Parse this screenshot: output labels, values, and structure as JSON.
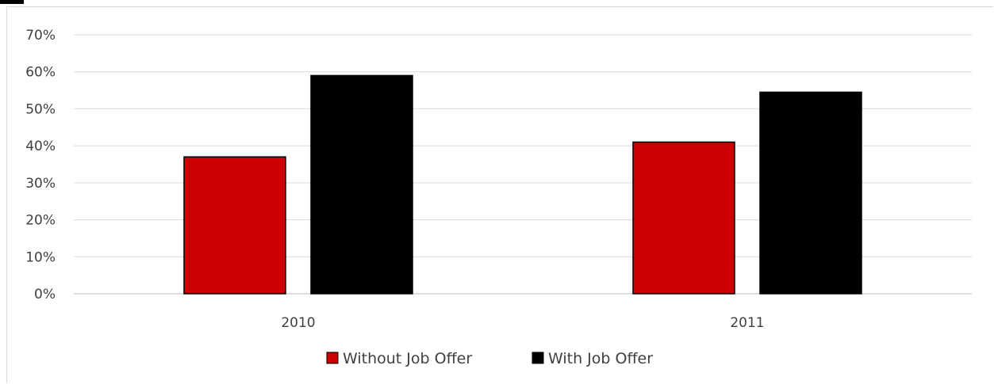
{
  "chart_data": {
    "type": "bar",
    "categories": [
      "2010",
      "2011"
    ],
    "series": [
      {
        "name": "Without Job Offer",
        "values": [
          0.37,
          0.41
        ],
        "color": "#cc0000"
      },
      {
        "name": "With Job Offer",
        "values": [
          0.59,
          0.545
        ],
        "color": "#000000"
      }
    ],
    "y_ticks": [
      "0%",
      "10%",
      "20%",
      "30%",
      "40%",
      "50%",
      "60%",
      "70%"
    ],
    "ylim": [
      0,
      0.7
    ],
    "grid": true,
    "legend_position": "bottom"
  }
}
